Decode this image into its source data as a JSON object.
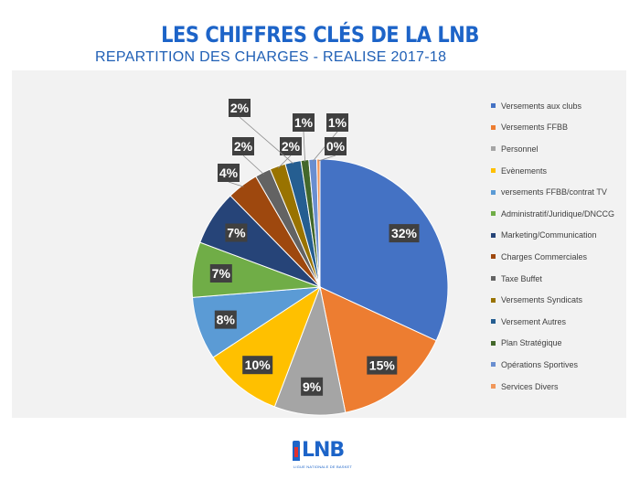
{
  "header": {
    "title": "LES CHIFFRES CLÉS DE LA LNB",
    "subtitle": "REPARTITION DES CHARGES - REALISE 2017-18"
  },
  "logo": {
    "name": "LNB",
    "tagline": "LIGUE NATIONALE DE BASKET"
  },
  "chart_data": {
    "type": "pie",
    "title": "REPARTITION DES CHARGES - REALISE 2017-18",
    "legend_position": "right",
    "slices": [
      {
        "label": "Versements aux clubs",
        "value": 32,
        "display": "32%",
        "color": "#4472c4"
      },
      {
        "label": "Versements FFBB",
        "value": 15,
        "display": "15%",
        "color": "#ed7d31"
      },
      {
        "label": "Personnel",
        "value": 9,
        "display": "9%",
        "color": "#a5a5a5"
      },
      {
        "label": "Evènements",
        "value": 10,
        "display": "10%",
        "color": "#ffc000"
      },
      {
        "label": "versements FFBB/contrat TV",
        "value": 8,
        "display": "8%",
        "color": "#5b9bd5"
      },
      {
        "label": "Administratif/Juridique/DNCCG",
        "value": 7,
        "display": "7%",
        "color": "#70ad47"
      },
      {
        "label": "Marketing/Communication",
        "value": 7,
        "display": "7%",
        "color": "#264478"
      },
      {
        "label": "Charges Commerciales",
        "value": 4,
        "display": "4%",
        "color": "#9e480e"
      },
      {
        "label": "Taxe Buffet",
        "value": 2,
        "display": "2%",
        "color": "#636363"
      },
      {
        "label": "Versements Syndicats",
        "value": 2,
        "display": "2%",
        "color": "#997300"
      },
      {
        "label": "Versement Autres",
        "value": 2,
        "display": "2%",
        "color": "#255e91"
      },
      {
        "label": "Plan Stratégique",
        "value": 1,
        "display": "1%",
        "color": "#43682b"
      },
      {
        "label": "Opérations Sportives",
        "value": 1,
        "display": "1%",
        "color": "#698ed0"
      },
      {
        "label": "Services Divers",
        "value": 0.4,
        "display": "0%",
        "color": "#f1975a"
      }
    ]
  }
}
